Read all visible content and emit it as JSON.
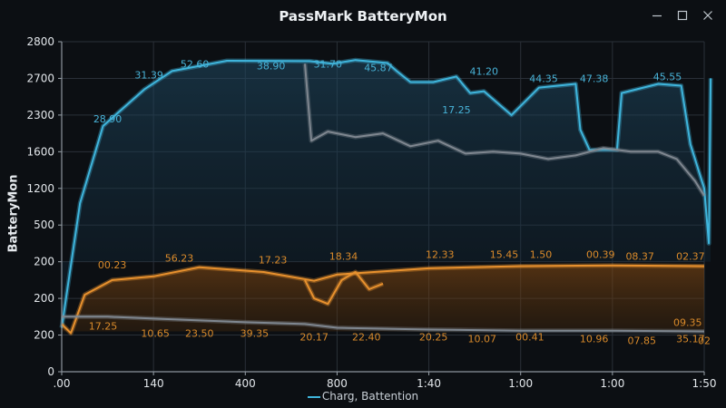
{
  "window": {
    "title": "PassMark BatteryMon",
    "controls": [
      "minimize-icon",
      "maximize-icon",
      "close-icon"
    ]
  },
  "chart_data": {
    "type": "line",
    "ylabel": "BatteryMon",
    "ytick_labels": [
      "2800",
      "2700",
      "2300",
      "1600",
      "1200",
      "500",
      "200",
      "200",
      "200",
      "0"
    ],
    "xtick_labels": [
      ".00",
      "140",
      "400",
      "800",
      "1:40",
      "1:00",
      "1:00",
      "1:50"
    ],
    "grid": true,
    "legend": {
      "placement": "bottom-center",
      "label": "Charg, Battention"
    },
    "colors": {
      "blue": "#3fb5dc",
      "orange": "#e8912e",
      "gray": "#7f8790"
    },
    "note_units": "y values are in tick-index units (0 = '0' at bottom, 9 = '2800' at top); x values are in tick-index units (0 = '.00', 7 = '1:50')",
    "series": [
      {
        "color": "blue",
        "points": [
          [
            0,
            1.2
          ],
          [
            0.2,
            4.6
          ],
          [
            0.45,
            6.7
          ],
          [
            0.9,
            7.7
          ],
          [
            1.2,
            8.2
          ],
          [
            1.8,
            8.48
          ],
          [
            2.7,
            8.47
          ],
          [
            2.95,
            8.4
          ],
          [
            3.2,
            8.5
          ],
          [
            3.55,
            8.42
          ],
          [
            3.65,
            8.2
          ],
          [
            3.8,
            7.9
          ],
          [
            4.05,
            7.9
          ],
          [
            4.3,
            8.05
          ],
          [
            4.45,
            7.6
          ],
          [
            4.6,
            7.65
          ],
          [
            4.9,
            7.0
          ],
          [
            5.2,
            7.75
          ],
          [
            5.6,
            7.85
          ],
          [
            5.65,
            6.6
          ],
          [
            5.75,
            6.05
          ],
          [
            6.05,
            6.05
          ],
          [
            6.1,
            7.6
          ],
          [
            6.5,
            7.85
          ],
          [
            6.75,
            7.8
          ],
          [
            6.85,
            6.2
          ],
          [
            7.0,
            5.0
          ],
          [
            7.05,
            3.5
          ],
          [
            7.07,
            8.0
          ]
        ]
      },
      {
        "color": "gray",
        "points": [
          [
            2.65,
            8.4
          ],
          [
            2.72,
            6.3
          ],
          [
            2.9,
            6.55
          ],
          [
            3.2,
            6.4
          ],
          [
            3.5,
            6.5
          ],
          [
            3.8,
            6.15
          ],
          [
            4.1,
            6.3
          ],
          [
            4.4,
            5.95
          ],
          [
            4.7,
            6.0
          ],
          [
            5.0,
            5.95
          ],
          [
            5.3,
            5.8
          ],
          [
            5.6,
            5.9
          ],
          [
            5.9,
            6.1
          ],
          [
            6.2,
            6.0
          ],
          [
            6.5,
            6.0
          ],
          [
            6.7,
            5.8
          ],
          [
            6.9,
            5.2
          ],
          [
            7.0,
            4.8
          ]
        ]
      },
      {
        "color": "orange",
        "points": [
          [
            0,
            1.3
          ],
          [
            0.1,
            1.05
          ],
          [
            0.25,
            2.1
          ],
          [
            0.55,
            2.5
          ],
          [
            1.0,
            2.6
          ],
          [
            1.5,
            2.85
          ],
          [
            2.2,
            2.72
          ],
          [
            2.75,
            2.48
          ],
          [
            3.0,
            2.65
          ],
          [
            4.0,
            2.82
          ],
          [
            5.0,
            2.88
          ],
          [
            6.0,
            2.9
          ],
          [
            7.0,
            2.88
          ]
        ]
      },
      {
        "color": "orange",
        "points": [
          [
            2.65,
            2.5
          ],
          [
            2.75,
            2.0
          ],
          [
            2.9,
            1.85
          ],
          [
            3.05,
            2.5
          ],
          [
            3.2,
            2.72
          ],
          [
            3.35,
            2.25
          ],
          [
            3.5,
            2.4
          ]
        ]
      },
      {
        "color": "gray",
        "points": [
          [
            0,
            1.5
          ],
          [
            0.5,
            1.5
          ],
          [
            1.0,
            1.45
          ],
          [
            2.0,
            1.35
          ],
          [
            2.65,
            1.3
          ],
          [
            3.0,
            1.2
          ],
          [
            4.0,
            1.15
          ],
          [
            5.0,
            1.12
          ],
          [
            6.0,
            1.12
          ],
          [
            7.0,
            1.1
          ]
        ]
      }
    ],
    "data_labels": [
      {
        "text": "28.90",
        "x": 0.5,
        "y": 6.8,
        "color": "blue"
      },
      {
        "text": "31.39",
        "x": 0.95,
        "y": 8.0,
        "color": "blue"
      },
      {
        "text": "52.60",
        "x": 1.45,
        "y": 8.3,
        "color": "blue"
      },
      {
        "text": "38.90",
        "x": 2.28,
        "y": 8.25,
        "color": "blue"
      },
      {
        "text": "31.70",
        "x": 2.9,
        "y": 8.3,
        "color": "blue"
      },
      {
        "text": "45.87",
        "x": 3.45,
        "y": 8.2,
        "color": "blue"
      },
      {
        "text": "41.20",
        "x": 4.6,
        "y": 8.1,
        "color": "blue"
      },
      {
        "text": "17.25",
        "x": 4.3,
        "y": 7.05,
        "color": "blue"
      },
      {
        "text": "44.35",
        "x": 5.25,
        "y": 7.9,
        "color": "blue"
      },
      {
        "text": "47.38",
        "x": 5.8,
        "y": 7.9,
        "color": "blue"
      },
      {
        "text": "45.55",
        "x": 6.6,
        "y": 7.95,
        "color": "blue"
      },
      {
        "text": "00.23",
        "x": 0.55,
        "y": 2.82,
        "color": "orange"
      },
      {
        "text": "56.23",
        "x": 1.28,
        "y": 3.0,
        "color": "orange"
      },
      {
        "text": "17.23",
        "x": 2.3,
        "y": 2.95,
        "color": "orange"
      },
      {
        "text": "18.34",
        "x": 3.07,
        "y": 3.05,
        "color": "orange"
      },
      {
        "text": "12.33",
        "x": 4.12,
        "y": 3.1,
        "color": "orange"
      },
      {
        "text": "15.45",
        "x": 4.82,
        "y": 3.1,
        "color": "orange"
      },
      {
        "text": "1.50",
        "x": 5.22,
        "y": 3.1,
        "color": "orange"
      },
      {
        "text": "00.39",
        "x": 5.87,
        "y": 3.1,
        "color": "orange"
      },
      {
        "text": "08.37",
        "x": 6.3,
        "y": 3.05,
        "color": "orange"
      },
      {
        "text": "02.37",
        "x": 6.85,
        "y": 3.05,
        "color": "orange"
      },
      {
        "text": "17.25",
        "x": 0.45,
        "y": 1.15,
        "color": "orange"
      },
      {
        "text": "10.65",
        "x": 1.02,
        "y": 0.95,
        "color": "orange"
      },
      {
        "text": "23.50",
        "x": 1.5,
        "y": 0.95,
        "color": "orange"
      },
      {
        "text": "39.35",
        "x": 2.1,
        "y": 0.95,
        "color": "orange"
      },
      {
        "text": "20.17",
        "x": 2.75,
        "y": 0.85,
        "color": "orange"
      },
      {
        "text": "22.40",
        "x": 3.32,
        "y": 0.85,
        "color": "orange"
      },
      {
        "text": "20.25",
        "x": 4.05,
        "y": 0.85,
        "color": "orange"
      },
      {
        "text": "10.07",
        "x": 4.58,
        "y": 0.8,
        "color": "orange"
      },
      {
        "text": "00.41",
        "x": 5.1,
        "y": 0.85,
        "color": "orange"
      },
      {
        "text": "10.96",
        "x": 5.8,
        "y": 0.8,
        "color": "orange"
      },
      {
        "text": "07.85",
        "x": 6.32,
        "y": 0.75,
        "color": "orange"
      },
      {
        "text": "35.17",
        "x": 6.85,
        "y": 0.8,
        "color": "orange"
      },
      {
        "text": "09.35",
        "x": 6.82,
        "y": 1.25,
        "color": "orange"
      },
      {
        "text": "02",
        "x": 7.0,
        "y": 0.75,
        "color": "orange"
      }
    ]
  }
}
